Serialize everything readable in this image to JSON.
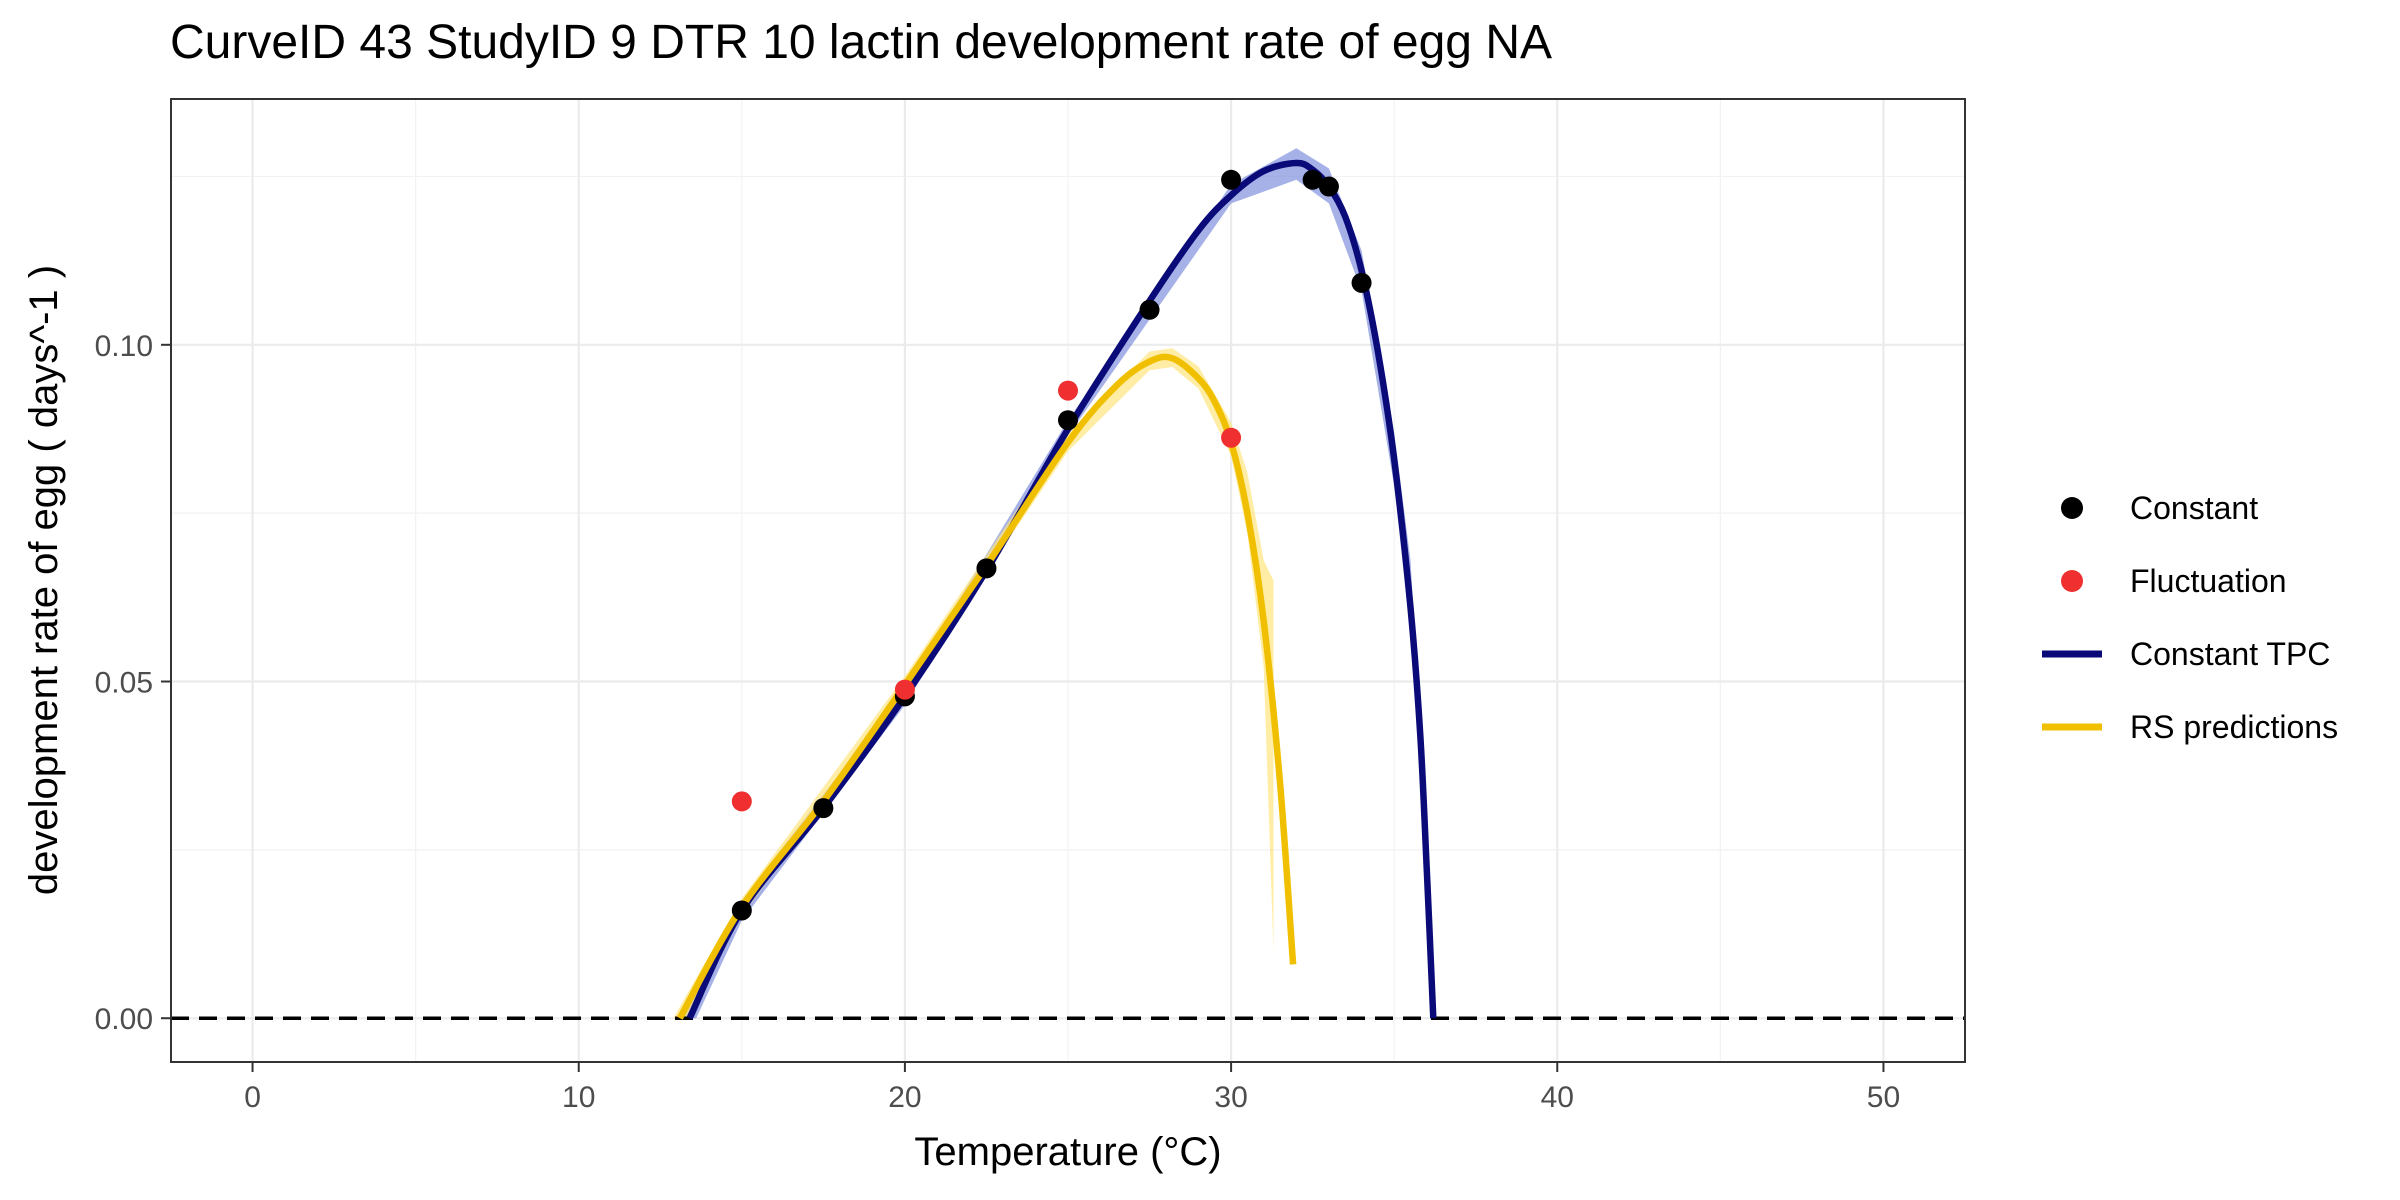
{
  "chart_data": {
    "type": "line",
    "title": "CurveID 43 StudyID 9 DTR 10 lactin development rate of egg NA",
    "xlabel": "Temperature (°C)",
    "ylabel": "development rate of egg ( days^-1 )",
    "xlim": [
      -2.5,
      52.5
    ],
    "ylim": [
      -0.0065,
      0.1365
    ],
    "x_ticks": [
      0,
      10,
      20,
      30,
      40,
      50
    ],
    "x_tick_labels": [
      "0",
      "10",
      "20",
      "30",
      "40",
      "50"
    ],
    "y_ticks": [
      0.0,
      0.05,
      0.1
    ],
    "y_tick_labels": [
      "0.00",
      "0.05",
      "0.10"
    ],
    "grid": true,
    "reference_line": {
      "y": 0,
      "style": "dashed",
      "color": "#000000"
    },
    "legend": {
      "placement": "right",
      "entries": [
        {
          "label": "Constant",
          "kind": "point",
          "color": "#000000"
        },
        {
          "label": "Fluctuation",
          "kind": "point",
          "color": "#f03030"
        },
        {
          "label": "Constant TPC",
          "kind": "line",
          "color": "#0a0a78"
        },
        {
          "label": "RS predictions",
          "kind": "line",
          "color": "#f0c000"
        }
      ]
    },
    "series": [
      {
        "name": "Constant",
        "kind": "points",
        "color": "#000000",
        "points": [
          [
            15,
            0.016
          ],
          [
            17.5,
            0.0312
          ],
          [
            20,
            0.0478
          ],
          [
            22.5,
            0.0668
          ],
          [
            25,
            0.0888
          ],
          [
            27.5,
            0.1052
          ],
          [
            30,
            0.1245
          ],
          [
            32.5,
            0.1245
          ],
          [
            33,
            0.1235
          ],
          [
            34,
            0.1092
          ]
        ]
      },
      {
        "name": "Fluctuation",
        "kind": "points",
        "color": "#f03030",
        "points": [
          [
            15,
            0.0322
          ],
          [
            20,
            0.0488
          ],
          [
            25,
            0.0932
          ],
          [
            30,
            0.0862
          ]
        ]
      },
      {
        "name": "Constant TPC",
        "kind": "line",
        "color": "#0a0a78",
        "band_color": "#8090dd",
        "points": [
          [
            13.4,
            0.0
          ],
          [
            15,
            0.016
          ],
          [
            17.5,
            0.0312
          ],
          [
            20,
            0.0478
          ],
          [
            22.5,
            0.0665
          ],
          [
            25,
            0.0875
          ],
          [
            27.5,
            0.1065
          ],
          [
            29,
            0.117
          ],
          [
            30,
            0.1222
          ],
          [
            31,
            0.1258
          ],
          [
            32,
            0.127
          ],
          [
            32.5,
            0.126
          ],
          [
            33,
            0.1235
          ],
          [
            33.5,
            0.119
          ],
          [
            34,
            0.111
          ],
          [
            34.5,
            0.099
          ],
          [
            35,
            0.083
          ],
          [
            35.5,
            0.061
          ],
          [
            35.8,
            0.042
          ],
          [
            36.0,
            0.022
          ],
          [
            36.2,
            0.0
          ]
        ],
        "band_lower": [
          [
            13.6,
            0.0
          ],
          [
            15,
            0.0145
          ],
          [
            20,
            0.0465
          ],
          [
            25,
            0.0865
          ],
          [
            30,
            0.121
          ],
          [
            32,
            0.1245
          ],
          [
            33,
            0.121
          ],
          [
            34,
            0.108
          ],
          [
            35,
            0.079
          ],
          [
            35.5,
            0.057
          ],
          [
            35.8,
            0.04
          ]
        ],
        "band_upper": [
          [
            13.2,
            0.0
          ],
          [
            15,
            0.0175
          ],
          [
            20,
            0.049
          ],
          [
            25,
            0.0888
          ],
          [
            30,
            0.1238
          ],
          [
            32,
            0.1292
          ],
          [
            33,
            0.1262
          ],
          [
            34,
            0.114
          ],
          [
            35,
            0.087
          ],
          [
            35.5,
            0.068
          ],
          [
            35.8,
            0.044
          ]
        ]
      },
      {
        "name": "RS predictions",
        "kind": "line",
        "color": "#f0c000",
        "band_color": "#ffe680",
        "points": [
          [
            13.1,
            0.0
          ],
          [
            15,
            0.0165
          ],
          [
            17.5,
            0.0322
          ],
          [
            20,
            0.0495
          ],
          [
            22.5,
            0.0672
          ],
          [
            25,
            0.0855
          ],
          [
            26.5,
            0.094
          ],
          [
            27.5,
            0.0975
          ],
          [
            28.2,
            0.098
          ],
          [
            29,
            0.095
          ],
          [
            29.5,
            0.0915
          ],
          [
            30,
            0.0855
          ],
          [
            30.5,
            0.075
          ],
          [
            31,
            0.059
          ],
          [
            31.5,
            0.035
          ],
          [
            31.9,
            0.008
          ]
        ],
        "band_lower": [
          [
            13.3,
            0.0
          ],
          [
            15,
            0.0152
          ],
          [
            20,
            0.0483
          ],
          [
            25,
            0.0842
          ],
          [
            27.5,
            0.0962
          ],
          [
            28.2,
            0.0967
          ],
          [
            29,
            0.0935
          ],
          [
            30,
            0.0835
          ],
          [
            30.5,
            0.072
          ],
          [
            31,
            0.052
          ],
          [
            31.3,
            0.01
          ]
        ],
        "band_upper": [
          [
            12.9,
            0.0
          ],
          [
            15,
            0.0178
          ],
          [
            20,
            0.0508
          ],
          [
            25,
            0.0868
          ],
          [
            27.5,
            0.099
          ],
          [
            28.2,
            0.0995
          ],
          [
            29,
            0.0968
          ],
          [
            30,
            0.0885
          ],
          [
            30.5,
            0.081
          ],
          [
            31,
            0.068
          ],
          [
            31.3,
            0.065
          ]
        ]
      }
    ]
  }
}
